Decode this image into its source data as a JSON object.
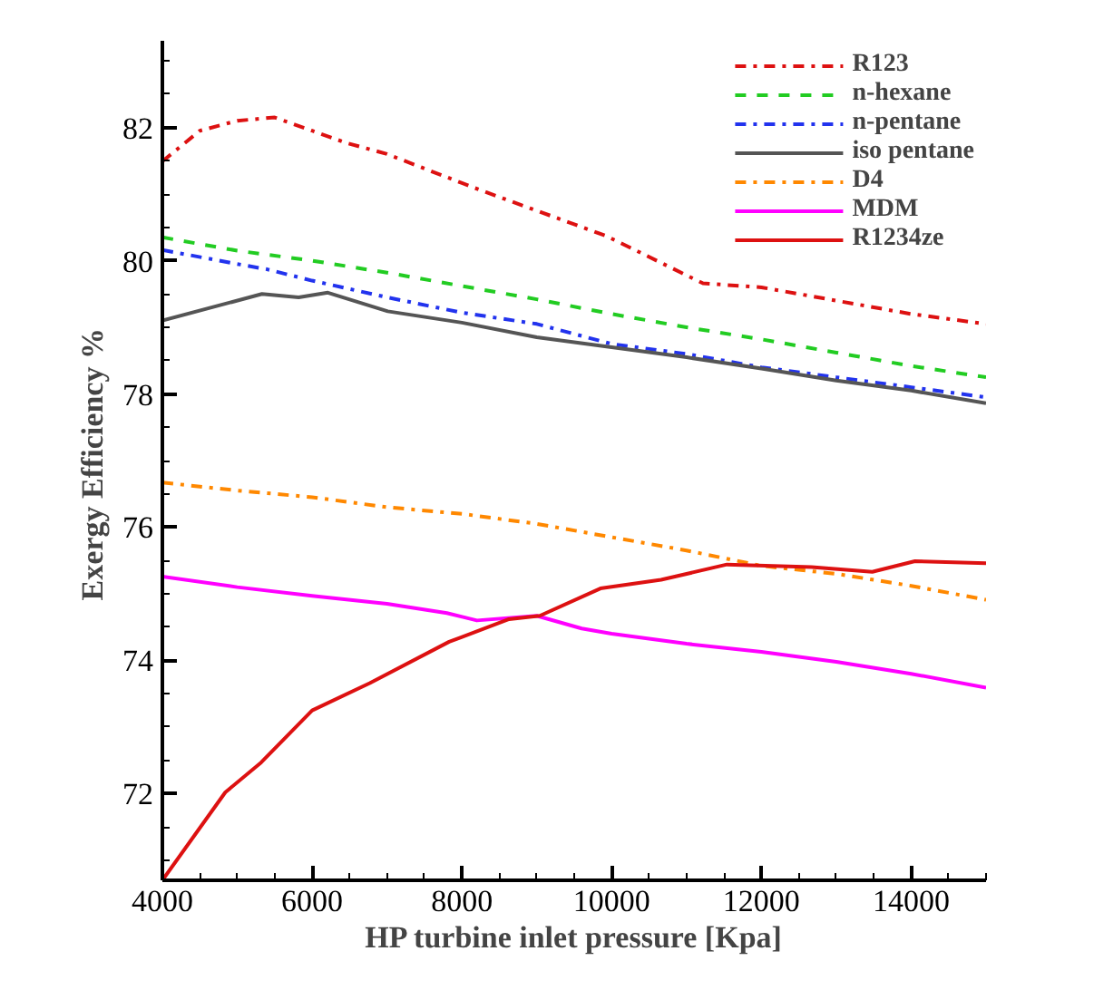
{
  "chart_data": {
    "type": "line",
    "xlabel": "HP turbine inlet pressure [Kpa]",
    "ylabel": "Exergy  Efficiency %",
    "xlim": [
      4000,
      15000
    ],
    "xticks": [
      4000,
      6000,
      8000,
      10000,
      12000,
      14000
    ],
    "ylim": [
      70.7,
      83.3
    ],
    "yticks": [
      72,
      74,
      76,
      78,
      80,
      82
    ],
    "grid": false,
    "legend": "top right",
    "marker": "none",
    "series": [
      {
        "name": "R123",
        "color": "#dd1111",
        "line_style": "dashdot",
        "x": [
          4000,
          4500,
          5000,
          5500,
          6000,
          6450,
          7000,
          8150,
          9000,
          9930,
          11220,
          12000,
          13000,
          14000,
          15000
        ],
        "values": [
          81.49,
          81.95,
          82.1,
          82.15,
          81.95,
          81.77,
          81.6,
          81.1,
          80.75,
          80.37,
          79.66,
          79.6,
          79.4,
          79.2,
          79.05
        ]
      },
      {
        "name": "n-hexane",
        "color": "#22cc22",
        "line_style": "dashed",
        "x": [
          4000,
          5000,
          6000,
          7000,
          8000,
          9000,
          10000,
          11000,
          12000,
          13000,
          14000,
          15000
        ],
        "values": [
          80.35,
          80.15,
          80.0,
          79.82,
          79.62,
          79.42,
          79.2,
          79.0,
          78.82,
          78.62,
          78.42,
          78.25
        ]
      },
      {
        "name": "n-pentane",
        "color": "#2233ee",
        "line_style": "dashdot",
        "x": [
          4000,
          5000,
          5400,
          6000,
          7000,
          8000,
          9000,
          10000,
          11000,
          12000,
          13000,
          14000,
          15000
        ],
        "values": [
          80.16,
          79.95,
          79.87,
          79.7,
          79.45,
          79.22,
          79.05,
          78.75,
          78.6,
          78.4,
          78.25,
          78.1,
          77.95
        ]
      },
      {
        "name": "iso pentane",
        "color": "#555555",
        "line_style": "solid",
        "x": [
          4000,
          5330,
          5820,
          6210,
          7010,
          8000,
          9000,
          10000,
          11000,
          12000,
          13000,
          14000,
          15000
        ],
        "values": [
          79.1,
          79.5,
          79.45,
          79.52,
          79.24,
          79.07,
          78.85,
          78.7,
          78.55,
          78.38,
          78.2,
          78.05,
          77.86
        ]
      },
      {
        "name": "D4",
        "color": "#ff8800",
        "line_style": "dashdot",
        "x": [
          4000,
          5000,
          6000,
          7000,
          8000,
          9000,
          10000,
          11000,
          12000,
          13000,
          14000,
          15000
        ],
        "values": [
          76.67,
          76.55,
          76.45,
          76.3,
          76.2,
          76.05,
          75.85,
          75.65,
          75.42,
          75.3,
          75.12,
          74.91
        ]
      },
      {
        "name": "MDM",
        "color": "#ff00ff",
        "line_style": "solid",
        "x": [
          4000,
          5000,
          6000,
          7000,
          7800,
          8200,
          9000,
          9600,
          10000,
          11000,
          12000,
          13000,
          14000,
          15000
        ],
        "values": [
          75.26,
          75.1,
          74.97,
          74.85,
          74.71,
          74.6,
          74.67,
          74.48,
          74.4,
          74.25,
          74.13,
          73.98,
          73.8,
          73.59
        ]
      },
      {
        "name": "R1234ze",
        "color": "#dd1111",
        "line_style": "solid",
        "x": [
          4000,
          4840,
          5320,
          6000,
          6770,
          7830,
          8630,
          9040,
          9850,
          10660,
          11540,
          12670,
          13480,
          14050,
          15000
        ],
        "values": [
          70.7,
          72.02,
          72.47,
          73.25,
          73.66,
          74.28,
          74.62,
          74.67,
          75.08,
          75.21,
          75.44,
          75.4,
          75.33,
          75.49,
          75.46
        ]
      }
    ]
  }
}
